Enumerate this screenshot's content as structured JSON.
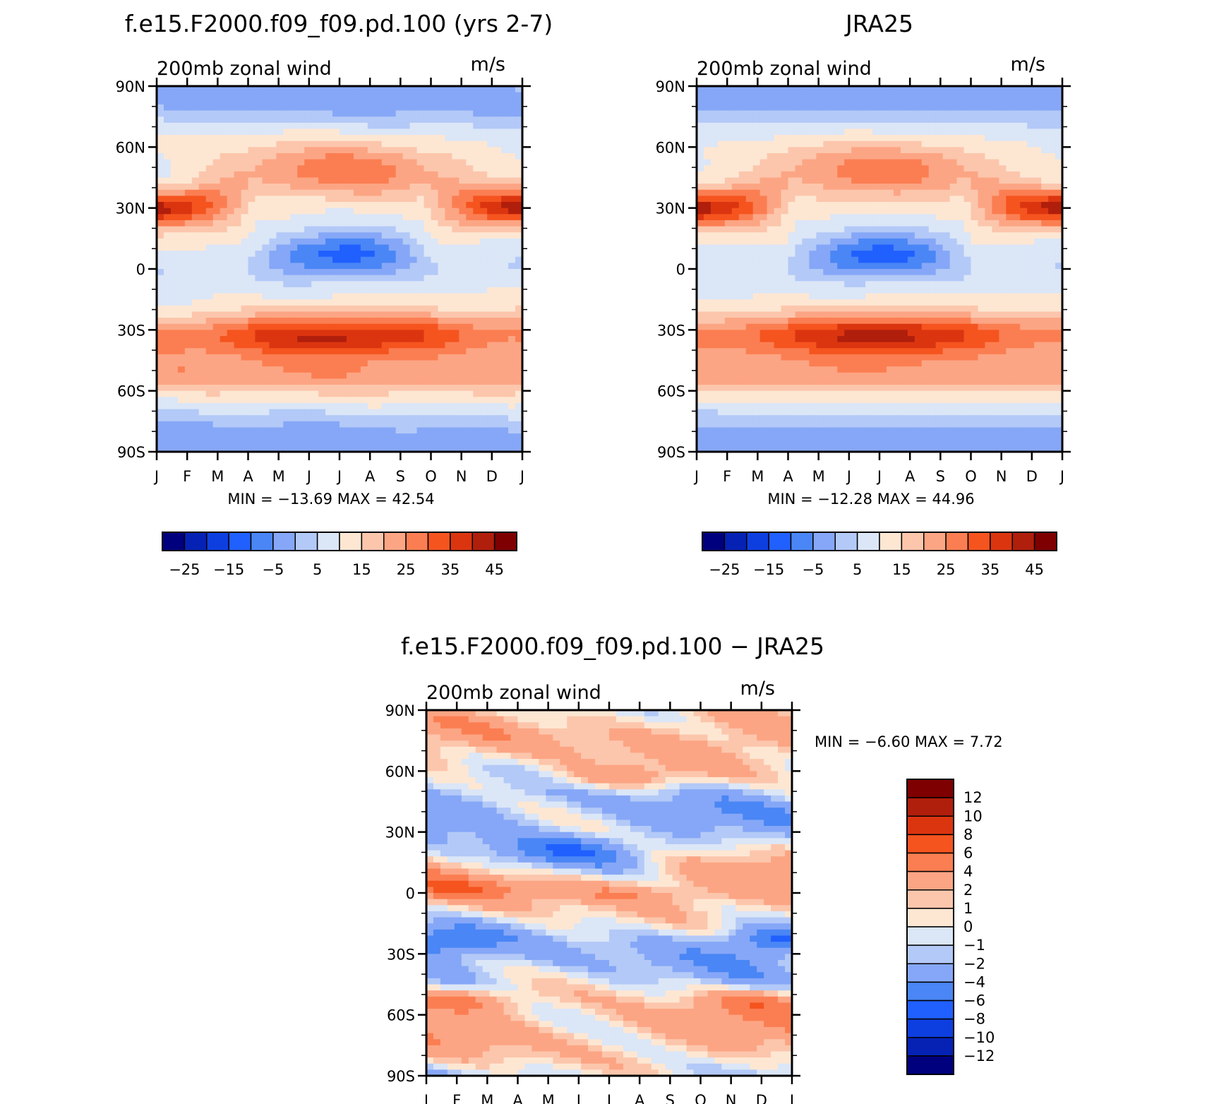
{
  "chart_data": [
    {
      "type": "heatmap",
      "title": "f.e15.F2000.f09_f09.pd.100 (yrs 2-7)",
      "subtitle": "200mb zonal wind",
      "units": "m/s",
      "x_ticks": [
        "J",
        "F",
        "M",
        "A",
        "M",
        "J",
        "J",
        "A",
        "S",
        "O",
        "N",
        "D",
        "J"
      ],
      "y_ticks": [
        "90N",
        "60N",
        "30N",
        "0",
        "30S",
        "60S",
        "90S"
      ],
      "ylim": [
        -90,
        90
      ],
      "stats": "MIN =  −13.69  MAX =   42.54",
      "min": -13.69,
      "max": 42.54,
      "colorbar": {
        "orientation": "horizontal",
        "levels": [
          -30,
          -25,
          -20,
          -15,
          -10,
          -5,
          0,
          5,
          10,
          15,
          20,
          25,
          30,
          35,
          40,
          45,
          50
        ],
        "labels": [
          "−25",
          "−15",
          "−5",
          "5",
          "15",
          "25",
          "35",
          "45"
        ],
        "colors": [
          "#00007f",
          "#0522b5",
          "#0d3fe0",
          "#2060ff",
          "#4a86f5",
          "#86a7f7",
          "#b3c9f7",
          "#dbe6f7",
          "#fde7d3",
          "#fcc6ac",
          "#fca584",
          "#fb7e52",
          "#f5541f",
          "#db3510",
          "#b01e0c",
          "#7f0000"
        ]
      }
    },
    {
      "type": "heatmap",
      "title": "JRA25",
      "subtitle": "200mb zonal wind",
      "units": "m/s",
      "x_ticks": [
        "J",
        "F",
        "M",
        "A",
        "M",
        "J",
        "J",
        "A",
        "S",
        "O",
        "N",
        "D",
        "J"
      ],
      "y_ticks": [
        "90N",
        "60N",
        "30N",
        "0",
        "30S",
        "60S",
        "90S"
      ],
      "ylim": [
        -90,
        90
      ],
      "stats": "MIN =  −12.28  MAX =   44.96",
      "min": -12.28,
      "max": 44.96,
      "colorbar": {
        "orientation": "horizontal",
        "levels": [
          -30,
          -25,
          -20,
          -15,
          -10,
          -5,
          0,
          5,
          10,
          15,
          20,
          25,
          30,
          35,
          40,
          45,
          50
        ],
        "labels": [
          "−25",
          "−15",
          "−5",
          "5",
          "15",
          "25",
          "35",
          "45"
        ],
        "colors": [
          "#00007f",
          "#0522b5",
          "#0d3fe0",
          "#2060ff",
          "#4a86f5",
          "#86a7f7",
          "#b3c9f7",
          "#dbe6f7",
          "#fde7d3",
          "#fcc6ac",
          "#fca584",
          "#fb7e52",
          "#f5541f",
          "#db3510",
          "#b01e0c",
          "#7f0000"
        ]
      }
    },
    {
      "type": "heatmap",
      "title": "f.e15.F2000.f09_f09.pd.100 − JRA25",
      "subtitle": "200mb zonal wind",
      "units": "m/s",
      "x_ticks": [
        "J",
        "F",
        "M",
        "A",
        "M",
        "J",
        "J",
        "A",
        "S",
        "O",
        "N",
        "D",
        "J"
      ],
      "y_ticks": [
        "90N",
        "60N",
        "30N",
        "0",
        "30S",
        "60S",
        "90S"
      ],
      "ylim": [
        -90,
        90
      ],
      "stats": "MIN =    −6.60  MAX =     7.72",
      "min": -6.6,
      "max": 7.72,
      "colorbar": {
        "orientation": "vertical",
        "levels": [
          -14,
          -12,
          -10,
          -8,
          -6,
          -4,
          -2,
          -1,
          0,
          1,
          2,
          4,
          6,
          8,
          10,
          12,
          14
        ],
        "labels": [
          "12",
          "10",
          "8",
          "6",
          "4",
          "2",
          "1",
          "0",
          "−1",
          "−2",
          "−4",
          "−6",
          "−8",
          "−10",
          "−12"
        ],
        "colors": [
          "#00007f",
          "#0522b5",
          "#0d3fe0",
          "#2060ff",
          "#4a86f5",
          "#86a7f7",
          "#b3c9f7",
          "#dbe6f7",
          "#fde7d3",
          "#fcc6ac",
          "#fca584",
          "#fb7e52",
          "#f5541f",
          "#db3510",
          "#b01e0c",
          "#7f0000"
        ]
      }
    }
  ]
}
